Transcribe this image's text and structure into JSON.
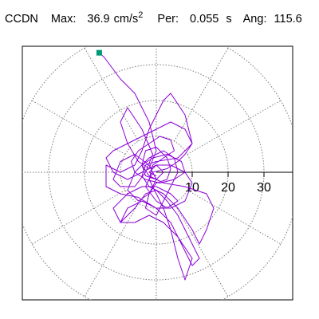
{
  "header": {
    "station": "CCDN",
    "max_label": "Max:",
    "max_value": "36.9",
    "max_unit": "cm/s",
    "max_unit_exp": "2",
    "per_label": "Per:",
    "per_value": "0.055",
    "per_unit": "s",
    "ang_label": "Ang:",
    "ang_value": "115.6"
  },
  "colors": {
    "trace": "#8B00D6",
    "marker": "#009977",
    "grid": "#7a7a7a",
    "axis": "#000000"
  },
  "chart_data": {
    "type": "scatter",
    "polar_rings": [
      10,
      20,
      30,
      40
    ],
    "polar_spokes_deg": [
      0,
      30,
      60,
      90,
      120,
      150,
      180,
      210,
      240,
      270,
      300,
      330
    ],
    "tick_labels": [
      "10",
      "20",
      "30"
    ],
    "tick_values": [
      10,
      20,
      30
    ],
    "max_point": {
      "x": -15.9,
      "y": 33.3
    },
    "trace": [
      [
        -15.9,
        33.3
      ],
      [
        -14.5,
        32
      ],
      [
        -10,
        26
      ],
      [
        -6,
        22
      ],
      [
        -2,
        14
      ],
      [
        0,
        6
      ],
      [
        -2,
        1
      ],
      [
        -5,
        3
      ],
      [
        -8,
        8
      ],
      [
        -10,
        14
      ],
      [
        -8,
        18
      ],
      [
        -4,
        12
      ],
      [
        -1,
        5
      ],
      [
        -3,
        0
      ],
      [
        -6,
        -4
      ],
      [
        -10,
        -4
      ],
      [
        -12,
        -2
      ],
      [
        -10,
        3
      ],
      [
        -6,
        5
      ],
      [
        -2,
        2
      ],
      [
        0,
        -2
      ],
      [
        -2,
        -6
      ],
      [
        -5,
        -8
      ],
      [
        -8,
        -5
      ],
      [
        -6,
        0
      ],
      [
        -2,
        4
      ],
      [
        2,
        6
      ],
      [
        5,
        4
      ],
      [
        6,
        0
      ],
      [
        4,
        -4
      ],
      [
        2,
        -8
      ],
      [
        0,
        -12
      ],
      [
        -3,
        -10
      ],
      [
        -2,
        -6
      ],
      [
        0,
        -3
      ],
      [
        3,
        -2
      ],
      [
        4,
        1
      ],
      [
        3,
        4
      ],
      [
        0,
        7
      ],
      [
        -3,
        6
      ],
      [
        -4,
        2
      ],
      [
        -2,
        -1
      ],
      [
        2,
        -3
      ],
      [
        8,
        -4
      ],
      [
        14,
        -6
      ],
      [
        16,
        -10
      ],
      [
        14,
        -16
      ],
      [
        12,
        -20
      ],
      [
        10,
        -16
      ],
      [
        6,
        -10
      ],
      [
        2,
        -6
      ],
      [
        -2,
        -4
      ],
      [
        -4,
        -1
      ],
      [
        -3,
        2
      ],
      [
        0,
        3
      ],
      [
        6,
        4
      ],
      [
        10,
        8
      ],
      [
        8,
        16
      ],
      [
        4,
        22
      ],
      [
        2,
        20
      ],
      [
        -2,
        12
      ],
      [
        -4,
        6
      ],
      [
        -6,
        2
      ],
      [
        -10,
        0
      ],
      [
        -14,
        2
      ],
      [
        -14,
        -4
      ],
      [
        -10,
        -6
      ],
      [
        -5,
        -7
      ],
      [
        0,
        -10
      ],
      [
        4,
        -14
      ],
      [
        7,
        -20
      ],
      [
        10,
        -26
      ],
      [
        12,
        -24
      ],
      [
        9,
        -18
      ],
      [
        6,
        -12
      ],
      [
        3,
        -8
      ],
      [
        0,
        -5
      ],
      [
        -3,
        -6
      ],
      [
        -6,
        -10
      ],
      [
        -10,
        -14
      ],
      [
        -12,
        -10
      ],
      [
        -8,
        -6
      ],
      [
        -4,
        -4
      ],
      [
        0,
        -4
      ],
      [
        4,
        -6
      ],
      [
        6,
        -8
      ],
      [
        3,
        -10
      ],
      [
        0,
        -8
      ],
      [
        -3,
        -4
      ],
      [
        -1,
        0
      ],
      [
        3,
        1
      ],
      [
        6,
        3
      ],
      [
        8,
        5
      ],
      [
        10,
        8
      ],
      [
        8,
        12
      ],
      [
        4,
        14
      ],
      [
        0,
        12
      ],
      [
        -4,
        10
      ],
      [
        -8,
        8
      ],
      [
        -12,
        6
      ],
      [
        -14,
        4
      ],
      [
        -12,
        0
      ],
      [
        -8,
        -2
      ],
      [
        -4,
        0
      ],
      [
        0,
        2
      ],
      [
        4,
        2
      ],
      [
        8,
        0
      ],
      [
        10,
        -3
      ],
      [
        8,
        -8
      ],
      [
        4,
        -10
      ],
      [
        0,
        -10
      ],
      [
        -4,
        -8
      ],
      [
        -8,
        -10
      ],
      [
        -10,
        -14
      ],
      [
        -6,
        -14
      ],
      [
        -2,
        -12
      ],
      [
        2,
        -14
      ],
      [
        6,
        -18
      ],
      [
        10,
        -24
      ],
      [
        8,
        -30
      ],
      [
        6,
        -24
      ],
      [
        4,
        -16
      ],
      [
        2,
        -10
      ],
      [
        0,
        -6
      ],
      [
        -2,
        -2
      ],
      [
        -1,
        2
      ],
      [
        2,
        4
      ],
      [
        5,
        6
      ],
      [
        4,
        9
      ],
      [
        1,
        10
      ],
      [
        -2,
        8
      ],
      [
        -5,
        6
      ],
      [
        -7,
        3
      ],
      [
        -6,
        0
      ],
      [
        -3,
        -2
      ],
      [
        1,
        -3
      ],
      [
        5,
        -2
      ],
      [
        8,
        0
      ],
      [
        7,
        3
      ],
      [
        3,
        5
      ],
      [
        -1,
        4
      ],
      [
        -4,
        2
      ],
      [
        -3,
        -1
      ],
      [
        0,
        -2
      ],
      [
        2,
        0
      ],
      [
        0,
        2
      ],
      [
        -2,
        0
      ],
      [
        0,
        -1
      ]
    ]
  }
}
